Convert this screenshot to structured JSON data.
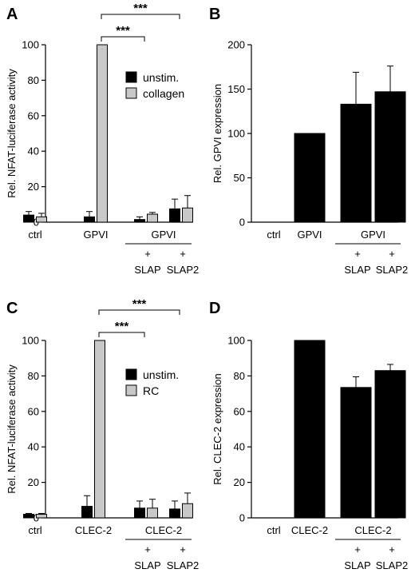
{
  "chart_data": [
    {
      "panel": "A",
      "type": "bar",
      "categories": [
        "ctrl",
        "GPVI",
        "GPVI",
        "GPVI"
      ],
      "group_label": "GPVI",
      "sub_labels": [
        "",
        "",
        "SLAP",
        "SLAP2"
      ],
      "plus_sign": "+",
      "ylabel": "Rel. NFAT-luciferase activity",
      "ylim": [
        0,
        100
      ],
      "yticks": [
        0,
        20,
        40,
        60,
        80,
        100
      ],
      "series": [
        {
          "name": "unstim.",
          "color": "#000000",
          "values": [
            4,
            3,
            1.5,
            7.5
          ],
          "errors": [
            2,
            3,
            1.5,
            5.5
          ]
        },
        {
          "name": "collagen",
          "color": "#c8c8c8",
          "values": [
            3,
            100,
            4.5,
            8
          ],
          "errors": [
            2,
            0,
            1,
            7
          ]
        }
      ],
      "significance": [
        {
          "label": "***",
          "from": 1,
          "to": 2
        },
        {
          "label": "***",
          "from": 1,
          "to": 3
        }
      ],
      "legend": "top-right"
    },
    {
      "panel": "B",
      "type": "bar",
      "categories": [
        "ctrl",
        "GPVI",
        "GPVI",
        "GPVI"
      ],
      "group_label": "GPVI",
      "sub_labels": [
        "",
        "",
        "SLAP",
        "SLAP2"
      ],
      "plus_sign": "+",
      "ylabel": "Rel. GPVI expression",
      "ylim": [
        0,
        200
      ],
      "yticks": [
        0,
        50,
        100,
        150,
        200
      ],
      "series": [
        {
          "name": "",
          "color": "#000000",
          "values": [
            0,
            100,
            133,
            147
          ],
          "errors": [
            0,
            0,
            36,
            29
          ]
        }
      ]
    },
    {
      "panel": "C",
      "type": "bar",
      "categories": [
        "ctrl",
        "CLEC-2",
        "CLEC-2",
        "CLEC-2"
      ],
      "group_label": "CLEC-2",
      "sub_labels": [
        "",
        "",
        "SLAP",
        "SLAP2"
      ],
      "plus_sign": "+",
      "ylabel": "Rel. NFAT-luciferase activity",
      "ylim": [
        0,
        100
      ],
      "yticks": [
        0,
        20,
        40,
        60,
        80,
        100
      ],
      "series": [
        {
          "name": "unstim.",
          "color": "#000000",
          "values": [
            2,
            6.5,
            5.5,
            5
          ],
          "errors": [
            0.5,
            6,
            4,
            4.5
          ]
        },
        {
          "name": "RC",
          "color": "#c8c8c8",
          "values": [
            2,
            100,
            5.5,
            8
          ],
          "errors": [
            0.5,
            0,
            5,
            6
          ]
        }
      ],
      "significance": [
        {
          "label": "***",
          "from": 1,
          "to": 2
        },
        {
          "label": "***",
          "from": 1,
          "to": 3
        }
      ],
      "legend": "top-right"
    },
    {
      "panel": "D",
      "type": "bar",
      "categories": [
        "ctrl",
        "CLEC-2",
        "CLEC-2",
        "CLEC-2"
      ],
      "group_label": "CLEC-2",
      "sub_labels": [
        "",
        "",
        "SLAP",
        "SLAP2"
      ],
      "plus_sign": "+",
      "ylabel": "Rel. CLEC-2 expression",
      "ylim": [
        0,
        100
      ],
      "yticks": [
        0,
        20,
        40,
        60,
        80,
        100
      ],
      "series": [
        {
          "name": "",
          "color": "#000000",
          "values": [
            0,
            100,
            73.5,
            83
          ],
          "errors": [
            0,
            0,
            6,
            3.5
          ]
        }
      ]
    }
  ]
}
